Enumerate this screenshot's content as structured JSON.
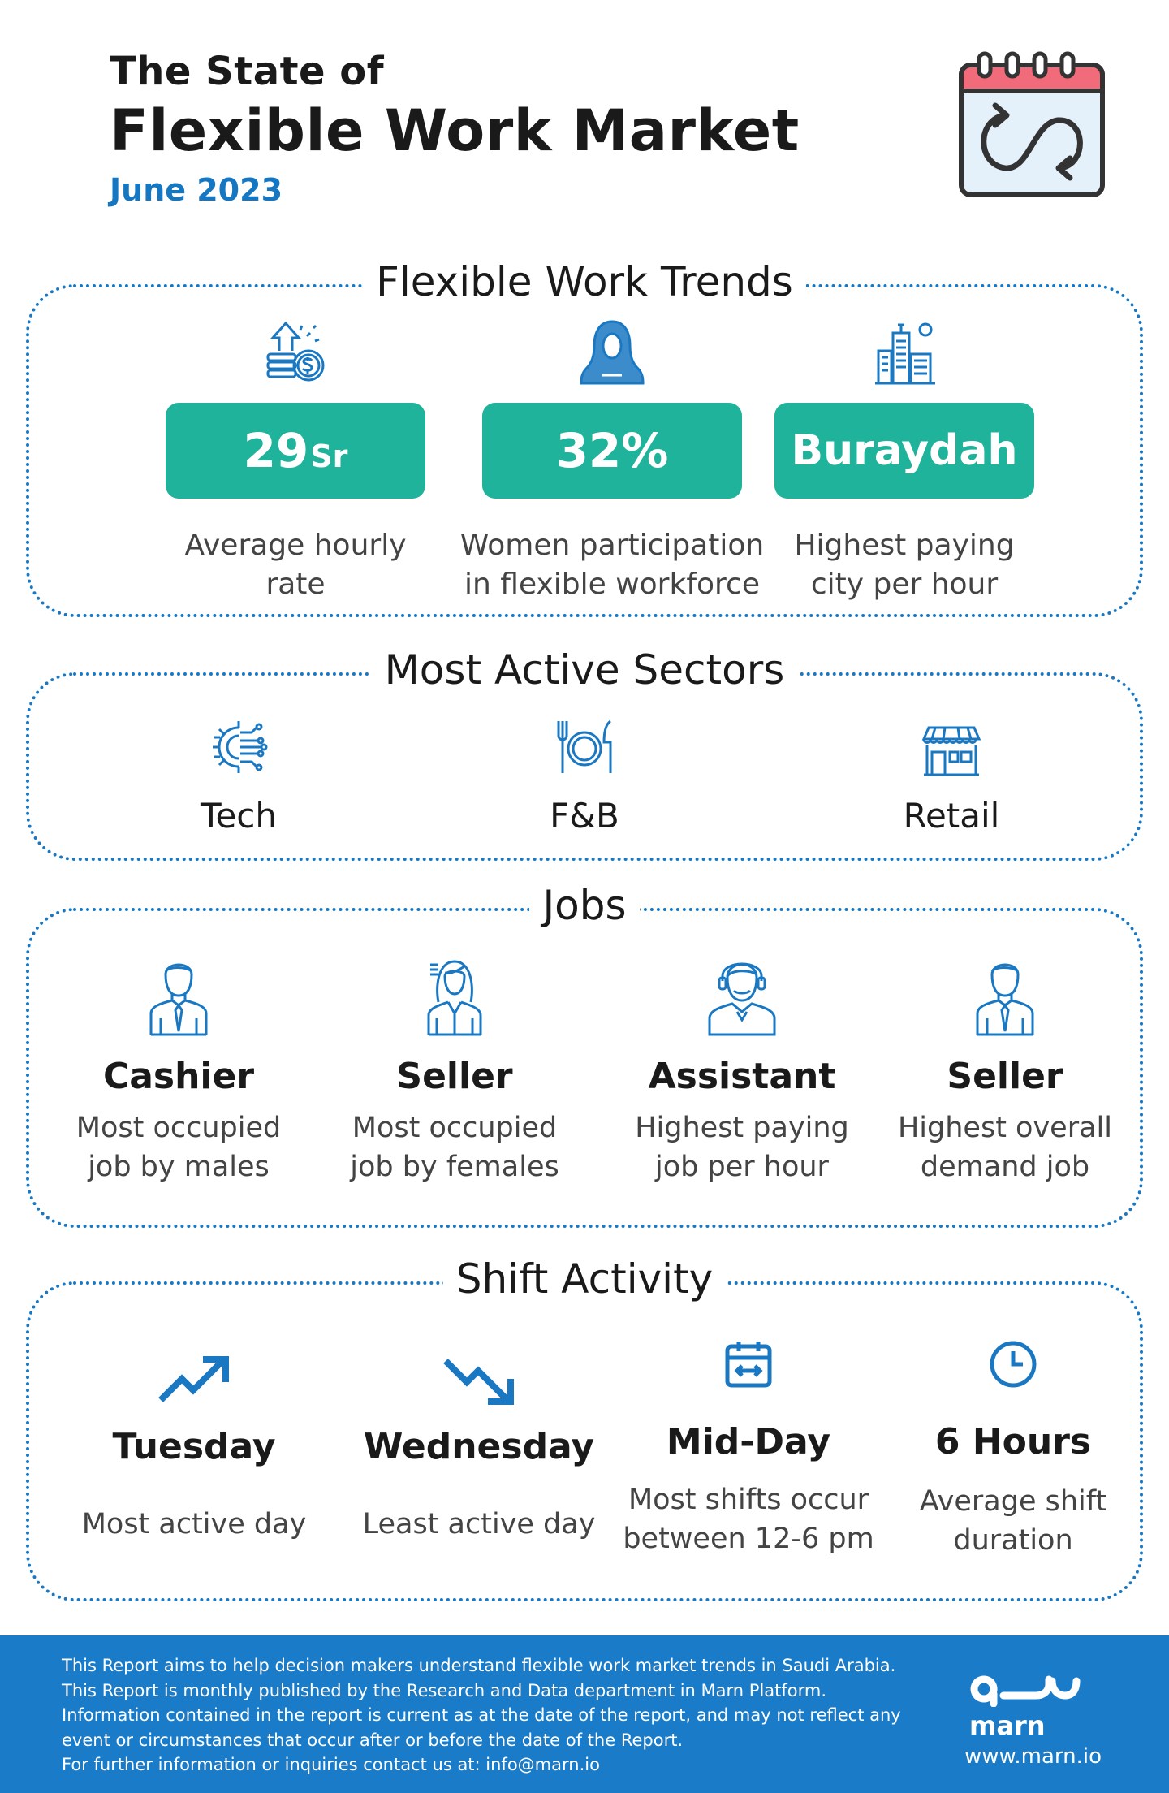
{
  "header": {
    "title_line1": "The State of",
    "title_line2": "Flexible Work Market",
    "date": "June 2023"
  },
  "trends": {
    "title": "Flexible Work Trends",
    "items": [
      {
        "icon": "money-growth-icon",
        "value": "29",
        "unit": "Sr",
        "desc_line1": "Average hourly",
        "desc_line2": "rate"
      },
      {
        "icon": "woman-hijab-icon",
        "value": "32%",
        "unit": "",
        "desc_line1": "Women participation",
        "desc_line2": "in flexible workforce"
      },
      {
        "icon": "city-buildings-icon",
        "value": "Buraydah",
        "unit": "",
        "desc_line1": "Highest paying",
        "desc_line2": "city per hour"
      }
    ]
  },
  "sectors": {
    "title": "Most Active Sectors",
    "items": [
      {
        "icon": "tech-gear-icon",
        "label": "Tech"
      },
      {
        "icon": "plate-cutlery-icon",
        "label": "F&B"
      },
      {
        "icon": "storefront-icon",
        "label": "Retail"
      }
    ]
  },
  "jobs": {
    "title": "Jobs",
    "items": [
      {
        "icon": "male-worker-icon",
        "title": "Cashier",
        "desc_line1": "Most occupied",
        "desc_line2": "job by males"
      },
      {
        "icon": "female-worker-icon",
        "title": "Seller",
        "desc_line1": "Most occupied",
        "desc_line2": "job by females"
      },
      {
        "icon": "assistant-headset-icon",
        "title": "Assistant",
        "desc_line1": "Highest paying",
        "desc_line2": "job per hour"
      },
      {
        "icon": "male-worker-icon",
        "title": "Seller",
        "desc_line1": "Highest overall",
        "desc_line2": "demand job"
      }
    ]
  },
  "shifts": {
    "title": "Shift Activity",
    "items": [
      {
        "icon": "trend-up-icon",
        "title": "Tuesday",
        "desc_line1": "Most active day",
        "desc_line2": ""
      },
      {
        "icon": "trend-down-icon",
        "title": "Wednesday",
        "desc_line1": "Least active day",
        "desc_line2": ""
      },
      {
        "icon": "calendar-range-icon",
        "title": "Mid-Day",
        "desc_line1": "Most shifts occur",
        "desc_line2": "between 12-6 pm"
      },
      {
        "icon": "clock-icon",
        "title": "6 Hours",
        "desc_line1": "Average shift",
        "desc_line2": "duration"
      }
    ]
  },
  "footer": {
    "lines": [
      "This Report aims to help decision makers understand flexible work market trends in Saudi Arabia.",
      "This Report is monthly published by the Research and Data department in Marn Platform.",
      "Information contained in the report is current as at the date of the report, and may not reflect any",
      "event or circumstances that occur after or before the date of the Report.",
      "For further information or inquiries contact us at: info@marn.io"
    ],
    "logo_arabic": "مرن",
    "logo_name": "marn",
    "url": "www.marn.io"
  },
  "colors": {
    "accent_blue": "#1a78c2",
    "teal": "#1fb39b",
    "calendar_red": "#f26b7a"
  }
}
